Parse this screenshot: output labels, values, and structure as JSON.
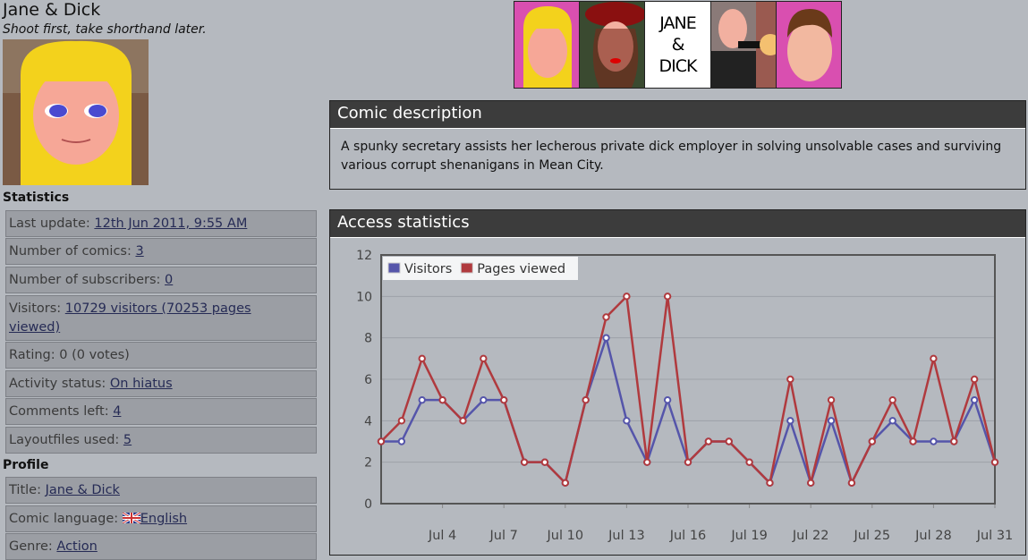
{
  "comic": {
    "title": "Jane & Dick",
    "slogan": "Shoot first, take shorthand later."
  },
  "banner": {
    "logo_text": "JANE & DICK"
  },
  "statistics": {
    "heading": "Statistics",
    "rows": [
      {
        "label": "Last update: ",
        "value": "12th Jun 2011, 9:55 AM"
      },
      {
        "label": "Number of comics: ",
        "value": "3"
      },
      {
        "label": "Number of subscribers: ",
        "value": "0"
      },
      {
        "label": "Visitors: ",
        "value": "10729 visitors (70253 pages viewed)"
      },
      {
        "label": "Rating: 0 (0 votes)",
        "value": null
      },
      {
        "label": "Activity status: ",
        "value": "On hiatus"
      },
      {
        "label": "Comments left: ",
        "value": "4"
      },
      {
        "label": "Layoutfiles used: ",
        "value": "5"
      }
    ]
  },
  "profile": {
    "heading": "Profile",
    "rows": [
      {
        "label": "Title: ",
        "value": "Jane & Dick"
      },
      {
        "label": "Comic language: ",
        "value": "English",
        "icon": "uk-flag-icon"
      },
      {
        "label": "Genre: ",
        "value": "Action"
      }
    ]
  },
  "description": {
    "heading": "Comic description",
    "text": "A spunky secretary assists her lecherous private dick employer in solving unsolvable cases and surviving various corrupt shenanigans in Mean City."
  },
  "access": {
    "heading": "Access statistics"
  },
  "chart_data": {
    "type": "line",
    "x": [
      "Jul 1",
      "Jul 2",
      "Jul 3",
      "Jul 4",
      "Jul 5",
      "Jul 6",
      "Jul 7",
      "Jul 8",
      "Jul 9",
      "Jul 10",
      "Jul 11",
      "Jul 12",
      "Jul 13",
      "Jul 14",
      "Jul 15",
      "Jul 16",
      "Jul 17",
      "Jul 18",
      "Jul 19",
      "Jul 20",
      "Jul 21",
      "Jul 22",
      "Jul 23",
      "Jul 24",
      "Jul 25",
      "Jul 26",
      "Jul 27",
      "Jul 28",
      "Jul 29",
      "Jul 30",
      "Jul 31"
    ],
    "xticks": [
      "Jul 4",
      "Jul 7",
      "Jul 10",
      "Jul 13",
      "Jul 16",
      "Jul 19",
      "Jul 22",
      "Jul 25",
      "Jul 28",
      "Jul 31"
    ],
    "yticks": [
      0,
      2,
      4,
      6,
      8,
      10,
      12
    ],
    "ylim": [
      0,
      12
    ],
    "grid": true,
    "legend": "top-left",
    "series": [
      {
        "name": "Visitors",
        "color": "#5555aa",
        "values": [
          3,
          3,
          5,
          5,
          4,
          5,
          5,
          2,
          2,
          1,
          5,
          8,
          4,
          2,
          5,
          2,
          3,
          3,
          2,
          1,
          4,
          1,
          4,
          1,
          3,
          4,
          3,
          3,
          3,
          5,
          2
        ]
      },
      {
        "name": "Pages viewed",
        "color": "#b03a3e",
        "values": [
          3,
          4,
          7,
          5,
          4,
          7,
          5,
          2,
          2,
          1,
          5,
          9,
          10,
          2,
          10,
          2,
          3,
          3,
          2,
          1,
          6,
          1,
          5,
          1,
          3,
          5,
          3,
          7,
          3,
          6,
          2
        ]
      }
    ]
  }
}
